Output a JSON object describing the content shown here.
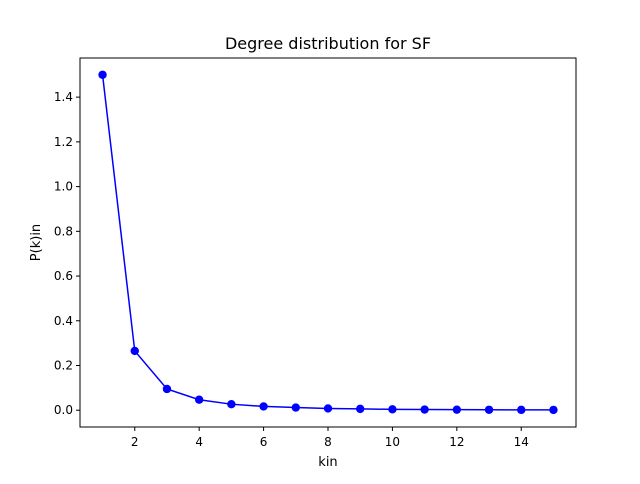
{
  "chart_data": {
    "type": "line",
    "title": "Degree distribution for SF",
    "xlabel": "kin",
    "ylabel": "P(k)in",
    "xlim": [
      0.3,
      15.7
    ],
    "ylim": [
      -0.075,
      1.575
    ],
    "xticks": [
      2,
      4,
      6,
      8,
      10,
      12,
      14
    ],
    "xtick_labels": [
      "2",
      "4",
      "6",
      "8",
      "10",
      "12",
      "14"
    ],
    "yticks": [
      0.0,
      0.2,
      0.4,
      0.6,
      0.8,
      1.0,
      1.2,
      1.4
    ],
    "ytick_labels": [
      "0.0",
      "0.2",
      "0.4",
      "0.6",
      "0.8",
      "1.0",
      "1.2",
      "1.4"
    ],
    "grid": false,
    "legend": "none",
    "series": [
      {
        "color": "#0000ff",
        "marker": "circle",
        "x": [
          1,
          2,
          3,
          4,
          5,
          6,
          7,
          8,
          9,
          10,
          11,
          12,
          13,
          14,
          15
        ],
        "y": [
          1.5,
          0.265,
          0.095,
          0.047,
          0.027,
          0.017,
          0.012,
          0.008,
          0.006,
          0.004,
          0.003,
          0.0025,
          0.002,
          0.0017,
          0.0015
        ]
      }
    ]
  }
}
